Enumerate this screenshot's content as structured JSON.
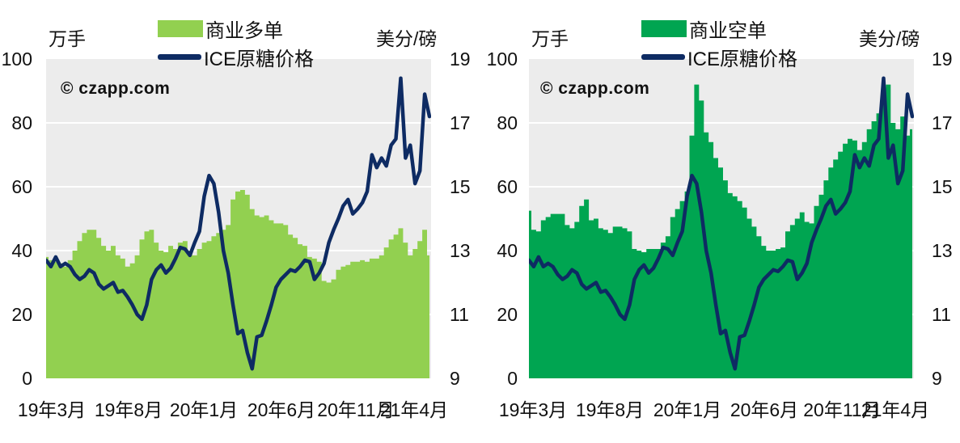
{
  "watermark": "© czapp.com",
  "chart_data": [
    {
      "type": "area+line",
      "title": "",
      "plot_bg": "#ececec",
      "grid_color": "#ffffff",
      "grid": true,
      "x_tick_labels": [
        "19年3月",
        "19年8月",
        "20年1月",
        "20年6月",
        "20年11月",
        "21年4月"
      ],
      "left_axis": {
        "label": "万手",
        "range": [
          0,
          100
        ],
        "ticks": [
          0,
          20,
          40,
          60,
          80,
          100
        ]
      },
      "right_axis": {
        "label": "美分/磅",
        "range": [
          9,
          19
        ],
        "ticks": [
          9,
          11,
          13,
          15,
          17,
          19
        ]
      },
      "legend_position": "top-center",
      "series": [
        {
          "name": "商业多单",
          "type": "area",
          "axis": "left",
          "color": "#92d050",
          "values": [
            38,
            37,
            36.5,
            36,
            35,
            37,
            40,
            43,
            45.5,
            46.5,
            46.5,
            44,
            41.5,
            40,
            41.5,
            38.5,
            37.5,
            35,
            36,
            38.5,
            43.5,
            46,
            46.5,
            42.5,
            40,
            39.5,
            41.5,
            40.5,
            42.5,
            43,
            40,
            38.5,
            40.5,
            42.5,
            43,
            44.5,
            45.5,
            46.5,
            48,
            56,
            58.5,
            59,
            57.5,
            53,
            51,
            50.5,
            51,
            49.5,
            48.5,
            48.5,
            48,
            45,
            44,
            42,
            41.5,
            38,
            37.5,
            36.5,
            30.5,
            30,
            31,
            34,
            35,
            35.5,
            36.5,
            36.5,
            37,
            36.5,
            37.5,
            37.5,
            38.5,
            41,
            43.5,
            45,
            47,
            42.5,
            38.5,
            40.5,
            43,
            46.5,
            38.5
          ]
        },
        {
          "name": "ICE原糖价格",
          "type": "line",
          "axis": "right",
          "color": "#0e2b63",
          "values": [
            12.7,
            12.5,
            12.8,
            12.5,
            12.6,
            12.5,
            12.25,
            12.1,
            12.2,
            12.4,
            12.3,
            11.95,
            11.8,
            11.9,
            12.0,
            11.7,
            11.75,
            11.55,
            11.3,
            11.0,
            10.85,
            11.3,
            12.1,
            12.4,
            12.55,
            12.3,
            12.45,
            12.75,
            13.1,
            13.05,
            12.85,
            13.25,
            13.6,
            14.7,
            15.35,
            15.1,
            14.2,
            13.0,
            12.3,
            11.3,
            10.4,
            10.5,
            9.8,
            9.3,
            10.3,
            10.35,
            10.8,
            11.3,
            11.85,
            12.1,
            12.25,
            12.4,
            12.35,
            12.5,
            12.7,
            12.65,
            12.1,
            12.3,
            12.6,
            13.25,
            13.65,
            14.0,
            14.4,
            14.6,
            14.15,
            14.3,
            14.5,
            14.85,
            16.0,
            15.6,
            15.9,
            15.65,
            16.3,
            16.5,
            18.4,
            15.9,
            16.3,
            15.1,
            15.5,
            17.9,
            17.2
          ]
        }
      ]
    },
    {
      "type": "area+line",
      "title": "",
      "plot_bg": "#ececec",
      "grid_color": "#ffffff",
      "grid": true,
      "x_tick_labels": [
        "19年3月",
        "19年8月",
        "20年1月",
        "20年6月",
        "20年11月",
        "21年4月"
      ],
      "left_axis": {
        "label": "万手",
        "range": [
          0,
          100
        ],
        "ticks": [
          0,
          20,
          40,
          60,
          80,
          100
        ]
      },
      "right_axis": {
        "label": "美分/磅",
        "range": [
          9,
          19
        ],
        "ticks": [
          9,
          11,
          13,
          15,
          17,
          19
        ]
      },
      "legend_position": "top-center",
      "series": [
        {
          "name": "商业空单",
          "type": "area",
          "axis": "left",
          "color": "#00a551",
          "values": [
            52.5,
            46.5,
            46,
            49.5,
            50.5,
            51.5,
            51.5,
            51.5,
            48,
            47,
            49,
            54,
            56,
            49.5,
            50,
            47,
            46.5,
            45.5,
            47.5,
            47.5,
            47,
            46,
            40.5,
            40,
            39.5,
            40.5,
            40.5,
            40.5,
            42.5,
            44.5,
            50.5,
            53,
            55.5,
            58.5,
            76,
            92,
            87,
            77,
            74,
            69,
            66,
            62,
            58,
            57,
            55.5,
            53.5,
            50,
            47.5,
            44.5,
            41.5,
            40,
            40,
            40.5,
            41,
            46,
            48,
            50,
            52,
            49,
            48.5,
            54,
            57.5,
            62,
            66,
            68.5,
            71,
            73.5,
            75,
            74.5,
            71.5,
            74,
            78,
            80.5,
            83,
            87,
            92,
            80,
            78,
            82,
            76,
            78
          ]
        },
        {
          "name": "ICE原糖价格",
          "type": "line",
          "axis": "right",
          "color": "#0e2b63",
          "values": [
            12.7,
            12.5,
            12.8,
            12.5,
            12.6,
            12.5,
            12.25,
            12.1,
            12.2,
            12.4,
            12.3,
            11.95,
            11.8,
            11.9,
            12.0,
            11.7,
            11.75,
            11.55,
            11.3,
            11.0,
            10.85,
            11.3,
            12.1,
            12.4,
            12.55,
            12.3,
            12.45,
            12.75,
            13.1,
            13.05,
            12.85,
            13.25,
            13.6,
            14.7,
            15.35,
            15.1,
            14.2,
            13.0,
            12.3,
            11.3,
            10.4,
            10.5,
            9.8,
            9.3,
            10.3,
            10.35,
            10.8,
            11.3,
            11.85,
            12.1,
            12.25,
            12.4,
            12.35,
            12.5,
            12.7,
            12.65,
            12.1,
            12.3,
            12.6,
            13.25,
            13.65,
            14.0,
            14.4,
            14.6,
            14.15,
            14.3,
            14.5,
            14.85,
            16.0,
            15.6,
            15.9,
            15.65,
            16.3,
            16.5,
            18.4,
            15.9,
            16.3,
            15.1,
            15.5,
            17.9,
            17.2
          ]
        }
      ]
    }
  ]
}
